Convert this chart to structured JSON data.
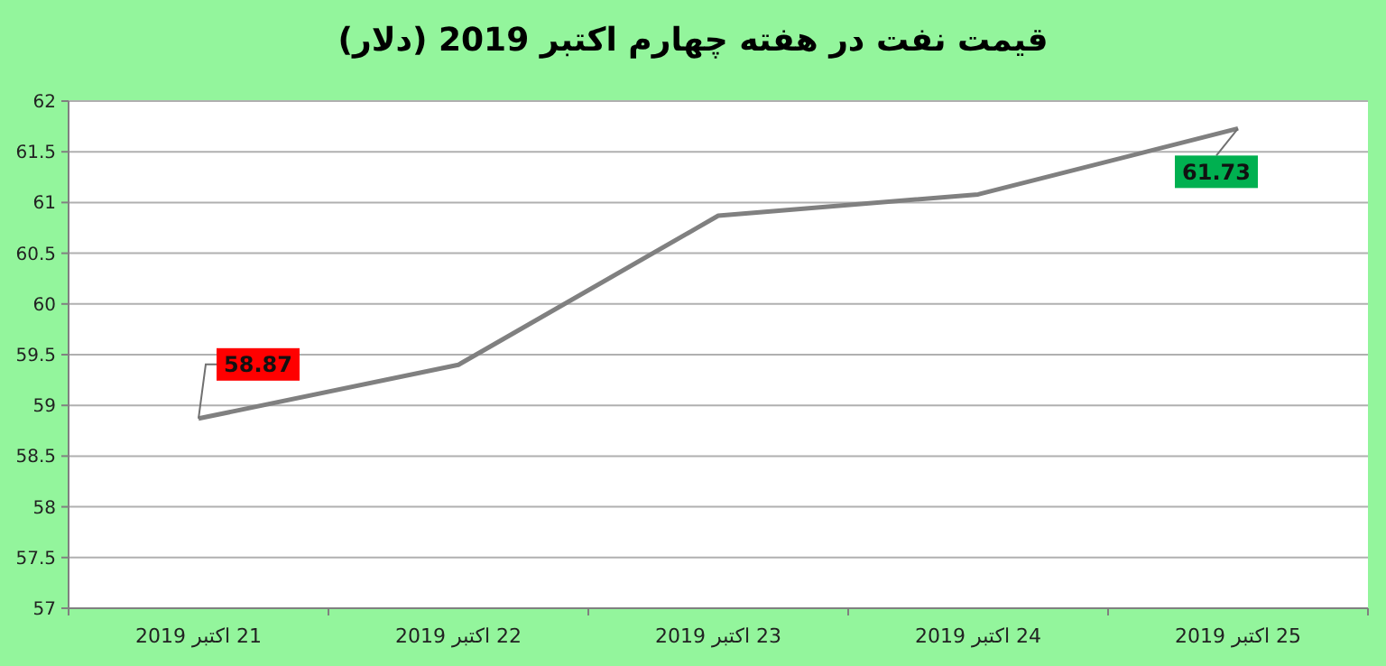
{
  "chart_data": {
    "type": "line",
    "title": "قیمت نفت در هفته چهارم اکتبر 2019 (دلار)",
    "categories": [
      "21 اکتبر 2019",
      "22 اکتبر 2019",
      "23 اکتبر 2019",
      "24 اکتبر 2019",
      "25 اکتبر 2019"
    ],
    "series": [
      {
        "color": "#808080",
        "values": [
          58.87,
          59.4,
          60.87,
          61.08,
          61.73
        ]
      }
    ],
    "ylim": [
      57,
      62
    ],
    "yticks": [
      57,
      57.5,
      58,
      58.5,
      59,
      59.5,
      60,
      60.5,
      61,
      61.5,
      62
    ],
    "grid": "y",
    "marker": "none",
    "line_style": "solid",
    "annotations": [
      {
        "text": "58.87",
        "x": "21 اکتبر 2019",
        "y": 58.87
      },
      {
        "text": "61.73",
        "x": "25 اکتبر 2019",
        "y": 61.73
      }
    ]
  }
}
